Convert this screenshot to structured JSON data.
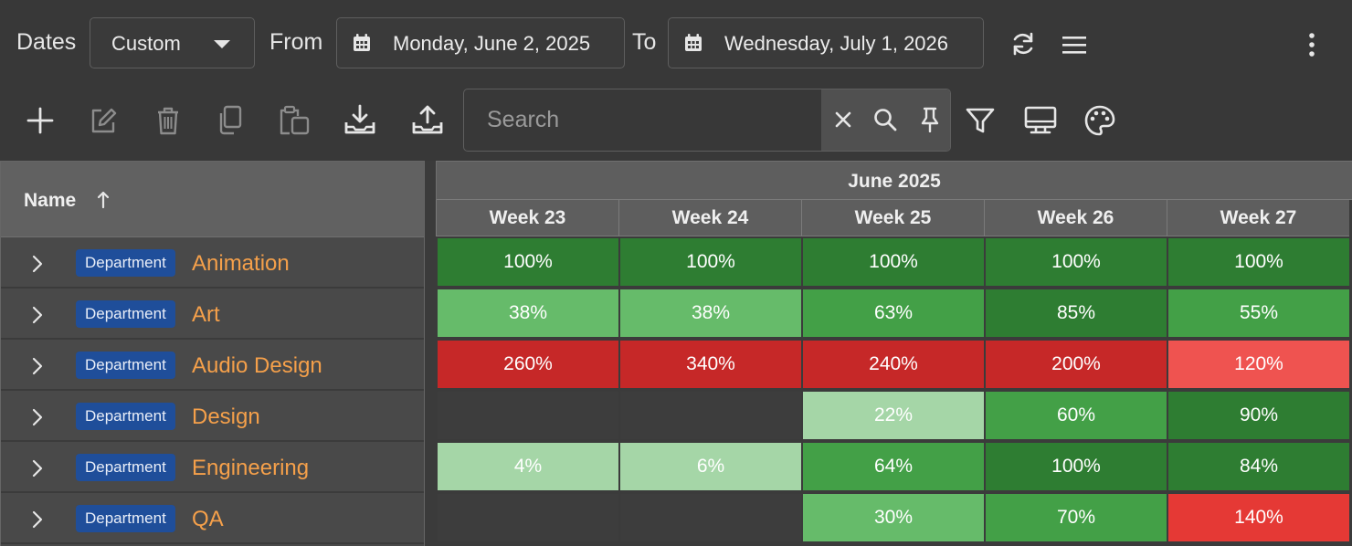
{
  "datebar": {
    "dates_label": "Dates",
    "range_select": "Custom",
    "from_label": "From",
    "from_date": "Monday, June 2, 2025",
    "to_label": "To",
    "to_date": "Wednesday, July 1, 2026",
    "icons": [
      "calendar-icon",
      "refresh-icon",
      "menu-icon",
      "more-vertical-icon"
    ]
  },
  "toolbar": {
    "icons": [
      "add-icon",
      "edit-icon",
      "delete-icon",
      "copy-icon",
      "paste-icon",
      "download-icon",
      "upload-icon",
      "filter-icon",
      "monitor-icon",
      "palette-icon"
    ],
    "search": {
      "placeholder": "Search",
      "value": "",
      "tool_icons": [
        "clear-icon",
        "search-icon",
        "pin-icon"
      ]
    }
  },
  "table": {
    "name_header": "Name",
    "sort": "ascending",
    "month": "June 2025",
    "weeks": [
      "Week 23",
      "Week 24",
      "Week 25",
      "Week 26",
      "Week 27"
    ],
    "colors": {
      "empty": "#3d3d3d",
      "g1": "#a5d6a7",
      "g2": "#66bb6a",
      "g3": "#43a047",
      "g4": "#2e7d32",
      "r1": "#ef5350",
      "r2": "#e53935",
      "r3": "#c62828"
    },
    "rows": [
      {
        "badge": "Department",
        "name": "Animation",
        "cells": [
          {
            "v": "100%",
            "c": "g4"
          },
          {
            "v": "100%",
            "c": "g4"
          },
          {
            "v": "100%",
            "c": "g4"
          },
          {
            "v": "100%",
            "c": "g4"
          },
          {
            "v": "100%",
            "c": "g4"
          }
        ]
      },
      {
        "badge": "Department",
        "name": "Art",
        "cells": [
          {
            "v": "38%",
            "c": "g2"
          },
          {
            "v": "38%",
            "c": "g2"
          },
          {
            "v": "63%",
            "c": "g3"
          },
          {
            "v": "85%",
            "c": "g4"
          },
          {
            "v": "55%",
            "c": "g3"
          }
        ]
      },
      {
        "badge": "Department",
        "name": "Audio Design",
        "cells": [
          {
            "v": "260%",
            "c": "r3"
          },
          {
            "v": "340%",
            "c": "r3"
          },
          {
            "v": "240%",
            "c": "r3"
          },
          {
            "v": "200%",
            "c": "r3"
          },
          {
            "v": "120%",
            "c": "r1"
          }
        ]
      },
      {
        "badge": "Department",
        "name": "Design",
        "cells": [
          {
            "v": "",
            "c": "empty"
          },
          {
            "v": "",
            "c": "empty"
          },
          {
            "v": "22%",
            "c": "g1"
          },
          {
            "v": "60%",
            "c": "g3"
          },
          {
            "v": "90%",
            "c": "g4"
          }
        ]
      },
      {
        "badge": "Department",
        "name": "Engineering",
        "cells": [
          {
            "v": "4%",
            "c": "g1"
          },
          {
            "v": "6%",
            "c": "g1"
          },
          {
            "v": "64%",
            "c": "g3"
          },
          {
            "v": "100%",
            "c": "g4"
          },
          {
            "v": "84%",
            "c": "g4"
          }
        ]
      },
      {
        "badge": "Department",
        "name": "QA",
        "cells": [
          {
            "v": "",
            "c": "empty"
          },
          {
            "v": "",
            "c": "empty"
          },
          {
            "v": "30%",
            "c": "g2"
          },
          {
            "v": "70%",
            "c": "g3"
          },
          {
            "v": "140%",
            "c": "r2"
          }
        ]
      }
    ]
  }
}
